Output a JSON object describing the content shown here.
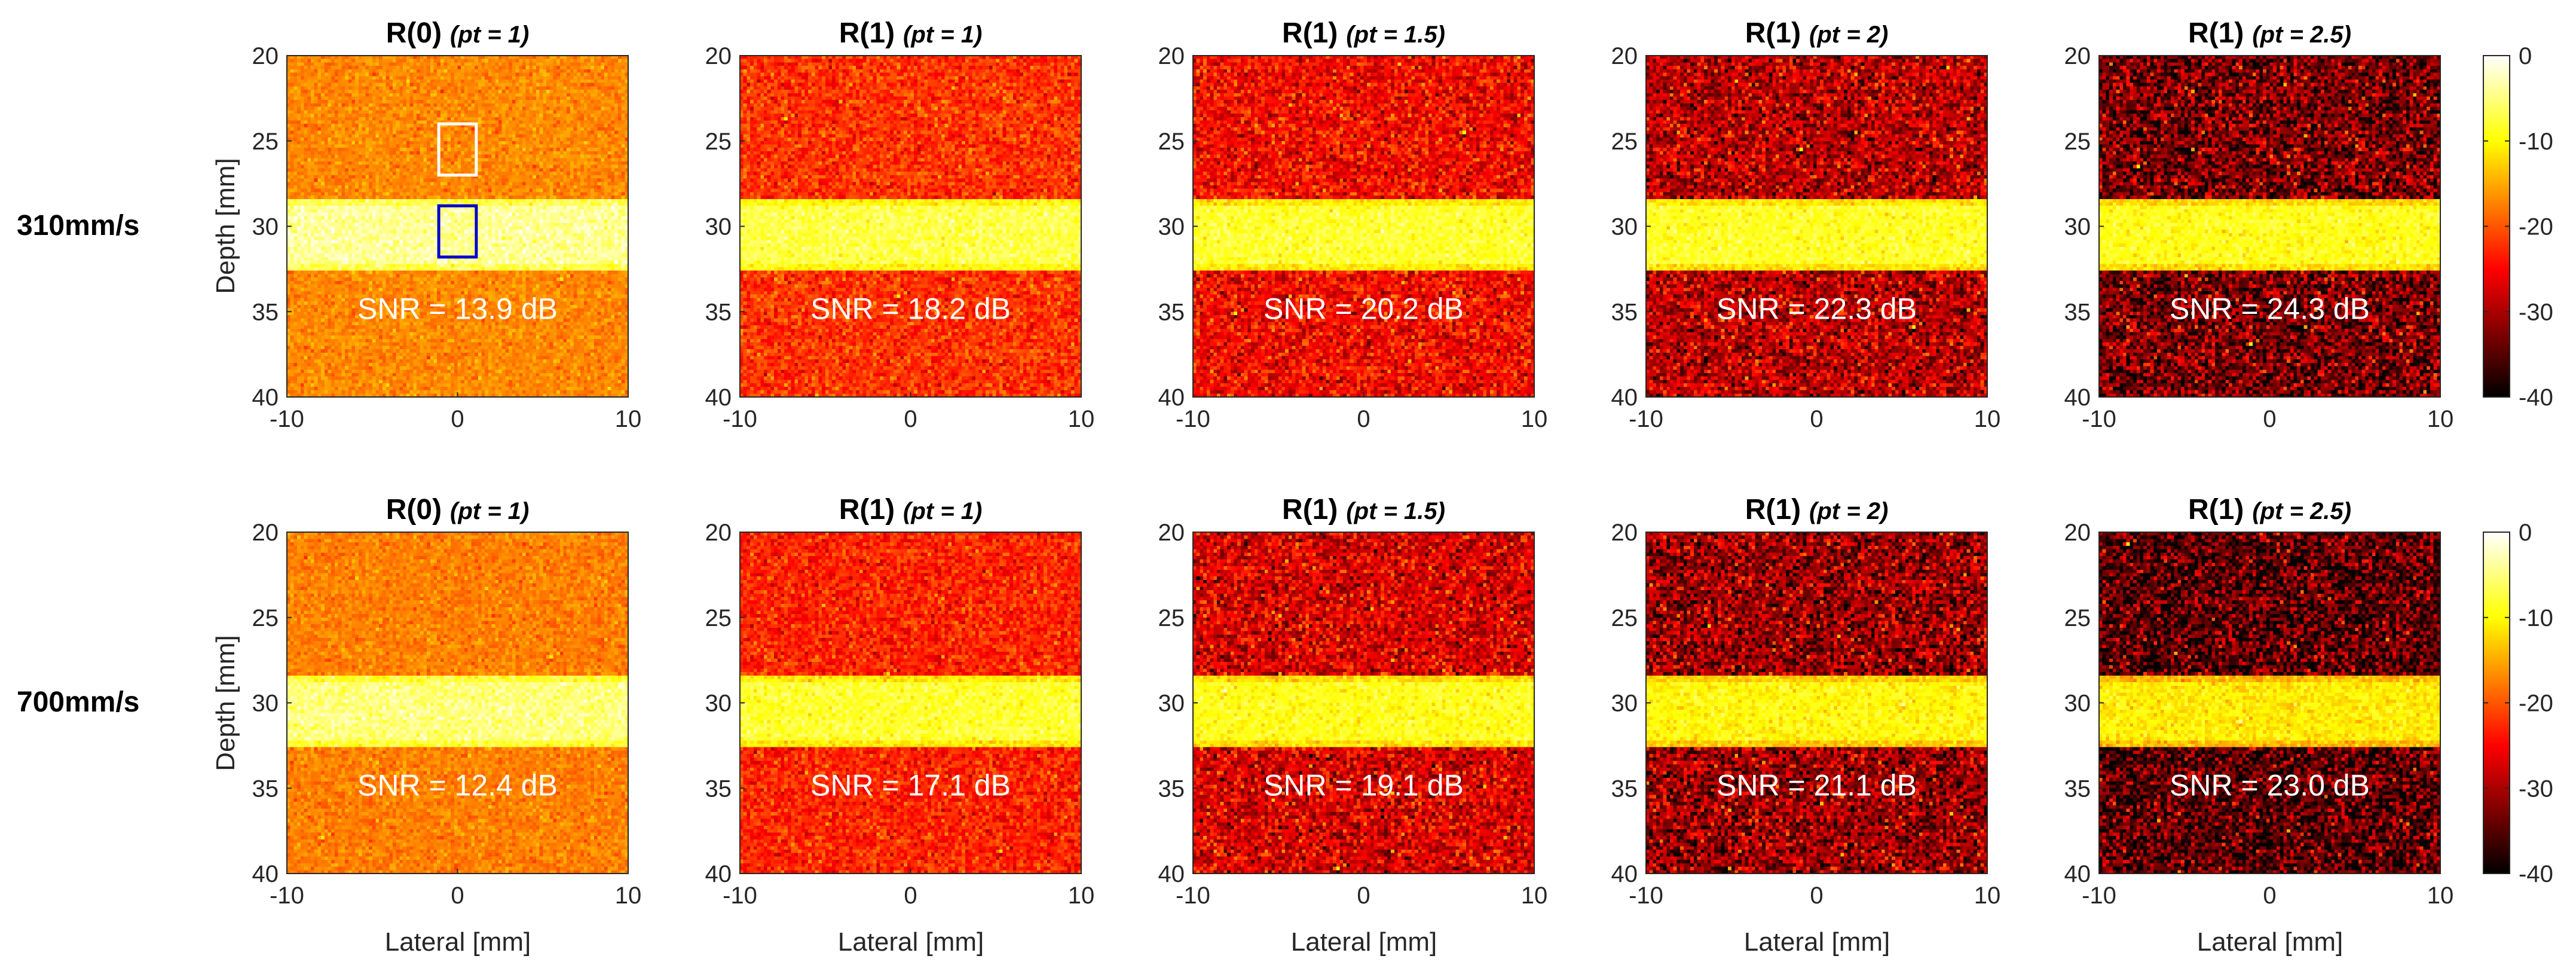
{
  "figure": {
    "row_labels": [
      "310mm/s",
      "700mm/s"
    ],
    "x_label": "Lateral [mm]",
    "y_label": "Depth [mm]",
    "x_ticks": [
      -10,
      0,
      10
    ],
    "y_ticks": [
      20,
      25,
      30,
      35,
      40
    ],
    "colorbar_ticks": [
      0,
      -10,
      -20,
      -30,
      -40
    ]
  },
  "chart_data": {
    "type": "heatmap",
    "xlim": [
      -10,
      10
    ],
    "ylim": [
      20,
      40
    ],
    "x_unit": "mm",
    "y_unit": "mm",
    "colormap": "hot",
    "clim": [
      -40,
      0
    ],
    "columns": [
      {
        "title_main": "R(0)",
        "title_param": "(pt = 1)"
      },
      {
        "title_main": "R(1)",
        "title_param": "(pt = 1)"
      },
      {
        "title_main": "R(1)",
        "title_param": "(pt = 1.5)"
      },
      {
        "title_main": "R(1)",
        "title_param": "(pt = 2)"
      },
      {
        "title_main": "R(1)",
        "title_param": "(pt = 2.5)"
      }
    ],
    "rows": [
      {
        "label": "310mm/s",
        "panels": [
          {
            "snr_text": "SNR = 13.9 dB",
            "snr_db": 13.9,
            "background_db": -17,
            "background_spread_db": 1.5,
            "band_db": -4
          },
          {
            "snr_text": "SNR = 18.2 dB",
            "snr_db": 18.2,
            "background_db": -22,
            "background_spread_db": 2.5,
            "band_db": -7
          },
          {
            "snr_text": "SNR = 20.2 dB",
            "snr_db": 20.2,
            "background_db": -25,
            "background_spread_db": 3.5,
            "band_db": -8
          },
          {
            "snr_text": "SNR = 22.3 dB",
            "snr_db": 22.3,
            "background_db": -29,
            "background_spread_db": 4.5,
            "band_db": -8.5
          },
          {
            "snr_text": "SNR = 24.3 dB",
            "snr_db": 24.3,
            "background_db": -33,
            "background_spread_db": 5.5,
            "band_db": -9
          }
        ]
      },
      {
        "label": "700mm/s",
        "panels": [
          {
            "snr_text": "SNR = 12.4 dB",
            "snr_db": 12.4,
            "background_db": -17.5,
            "background_spread_db": 1.5,
            "band_db": -5
          },
          {
            "snr_text": "SNR = 17.1 dB",
            "snr_db": 17.1,
            "background_db": -23,
            "background_spread_db": 2.5,
            "band_db": -8
          },
          {
            "snr_text": "SNR = 19.1 dB",
            "snr_db": 19.1,
            "background_db": -27,
            "background_spread_db": 4,
            "band_db": -9
          },
          {
            "snr_text": "SNR = 21.1 dB",
            "snr_db": 21.1,
            "background_db": -31,
            "background_spread_db": 5,
            "band_db": -10
          },
          {
            "snr_text": "SNR = 23.0 dB",
            "snr_db": 23.0,
            "background_db": -35,
            "background_spread_db": 5.5,
            "band_db": -11
          }
        ]
      }
    ],
    "band_depth_range": [
      28.5,
      32.5
    ],
    "rois": [
      {
        "name": "background-roi",
        "color": "#ffffff",
        "x_range": [
          -1.1,
          1.1
        ],
        "y_range": [
          24,
          27
        ]
      },
      {
        "name": "signal-roi",
        "color": "#0000cc",
        "x_range": [
          -1.1,
          1.1
        ],
        "y_range": [
          28.8,
          31.8
        ]
      }
    ]
  }
}
